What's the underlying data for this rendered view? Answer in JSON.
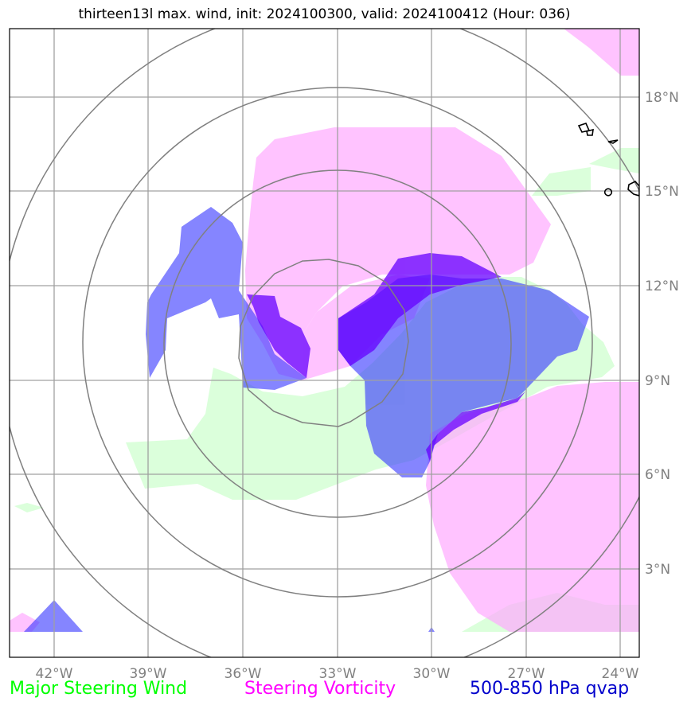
{
  "title": "thirteen13l max. wind, init: 2024100300, valid: 2024100412 (Hour: 036)",
  "map": {
    "lon_ticks": [
      "42°W",
      "39°W",
      "36°W",
      "33°W",
      "30°W",
      "27°W",
      "24°W"
    ],
    "lat_ticks": [
      "18°N",
      "15°N",
      "12°N",
      "9°N",
      "6°N",
      "3°N"
    ],
    "gridline_color": "#a0a0a0",
    "range_ring_color": "#808080",
    "land_outline_color": "#000000"
  },
  "layers": {
    "steering_wind": {
      "color": "#ccffcc"
    },
    "steering_vorticity": {
      "color": "#ffaaff"
    },
    "qvap": {
      "color": "#3333ff"
    },
    "qvap_high": {
      "color": "#6600ff"
    }
  },
  "legend": {
    "wind": {
      "label": "Major Steering Wind",
      "color": "#00ff00"
    },
    "vorticity": {
      "label": "Steering Vorticity",
      "color": "#ff00ff"
    },
    "qvap": {
      "label": "500-850 hPa qvap",
      "color": "#0000cc"
    }
  }
}
